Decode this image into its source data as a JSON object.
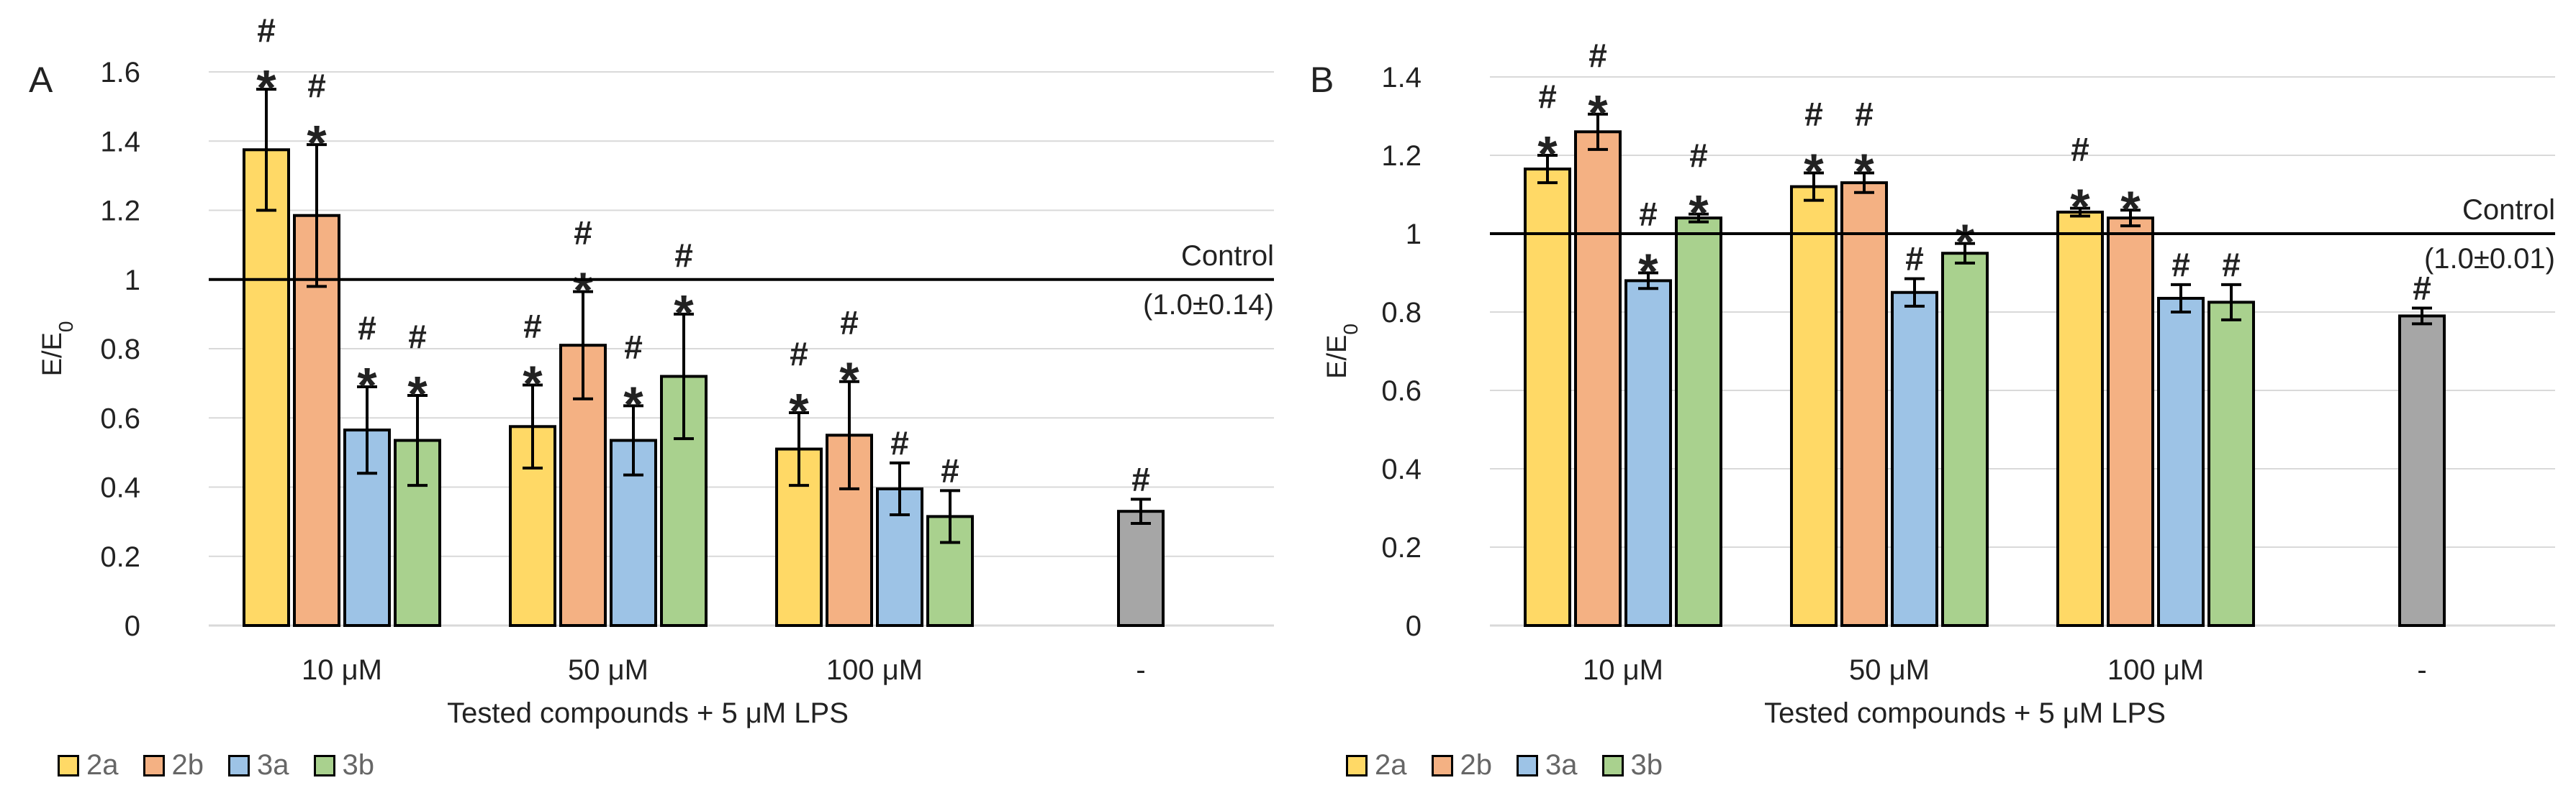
{
  "chart_data": [
    {
      "type": "bar",
      "panel_label": "A",
      "categories": [
        "10 μM",
        "50 μM",
        "100 μM",
        "-"
      ],
      "xlabel": "Tested compounds + 5 μM LPS",
      "ylabel": "E/E0",
      "ylabel_main": "E/E",
      "ylabel_sub": "0",
      "ylim": [
        0,
        1.6
      ],
      "yticks": [
        0,
        0.2,
        0.4,
        0.6,
        0.8,
        1,
        1.2,
        1.4,
        1.6
      ],
      "ytick_labels": [
        "0",
        "0.2",
        "0.4",
        "0.6",
        "0.8",
        "1",
        "1.2",
        "1.4",
        "1.6"
      ],
      "control_value": 1,
      "control_label": "Control",
      "control_sublabel": "(1.0±0.14)",
      "series": [
        {
          "name": "2a",
          "color": "#FFD966",
          "values": [
            1.375,
            0.575,
            0.51,
            null
          ],
          "errors": [
            0.175,
            0.12,
            0.105,
            null
          ],
          "marks": [
            "*#",
            "*#",
            "*#",
            null
          ]
        },
        {
          "name": "2b",
          "color": "#F4B183",
          "values": [
            1.185,
            0.81,
            0.55,
            null
          ],
          "errors": [
            0.205,
            0.155,
            0.155,
            null
          ],
          "marks": [
            "*#",
            "*#",
            "*#",
            null
          ]
        },
        {
          "name": "3a",
          "color": "#9DC3E6",
          "values": [
            0.565,
            0.535,
            0.395,
            null
          ],
          "errors": [
            0.125,
            0.1,
            0.075,
            null
          ],
          "marks": [
            "*#",
            "*#",
            "#",
            null
          ]
        },
        {
          "name": "3b",
          "color": "#A9D18E",
          "values": [
            0.535,
            0.72,
            0.315,
            null
          ],
          "errors": [
            0.13,
            0.18,
            0.075,
            null
          ],
          "marks": [
            "*#",
            "*#",
            "#",
            null
          ]
        },
        {
          "name": "LPS",
          "color": "#A6A6A6",
          "values": [
            null,
            null,
            null,
            0.33
          ],
          "errors": [
            null,
            null,
            null,
            0.035
          ],
          "marks": [
            null,
            null,
            null,
            "#"
          ]
        }
      ],
      "legend": [
        "2a",
        "2b",
        "3a",
        "3b"
      ]
    },
    {
      "type": "bar",
      "panel_label": "B",
      "categories": [
        "10 μM",
        "50 μM",
        "100 μM",
        "-"
      ],
      "xlabel": "Tested compounds + 5 μM LPS",
      "ylabel": "E/E0",
      "ylabel_main": "E/E",
      "ylabel_sub": "0",
      "ylim": [
        0,
        1.4
      ],
      "yticks": [
        0,
        0.2,
        0.4,
        0.6,
        0.8,
        1,
        1.2,
        1.4
      ],
      "ytick_labels": [
        "0",
        "0.2",
        "0.4",
        "0.6",
        "0.8",
        "1",
        "1.2",
        "1.4"
      ],
      "control_value": 1,
      "control_label": "Control",
      "control_sublabel": "(1.0±0.01)",
      "series": [
        {
          "name": "2a",
          "color": "#FFD966",
          "values": [
            1.165,
            1.12,
            1.055,
            null
          ],
          "errors": [
            0.035,
            0.035,
            0.01,
            null
          ],
          "marks": [
            "*#",
            "*#",
            "*#",
            null
          ]
        },
        {
          "name": "2b",
          "color": "#F4B183",
          "values": [
            1.26,
            1.13,
            1.04,
            null
          ],
          "errors": [
            0.045,
            0.025,
            0.02,
            null
          ],
          "marks": [
            "*#",
            "*#",
            "*",
            null
          ]
        },
        {
          "name": "3a",
          "color": "#9DC3E6",
          "values": [
            0.88,
            0.85,
            0.835,
            null
          ],
          "errors": [
            0.02,
            0.035,
            0.035,
            null
          ],
          "marks": [
            "*#",
            "#",
            "#",
            null
          ]
        },
        {
          "name": "3b",
          "color": "#A9D18E",
          "values": [
            1.04,
            0.95,
            0.825,
            null
          ],
          "errors": [
            0.01,
            0.025,
            0.045,
            null
          ],
          "marks": [
            "*#",
            "*",
            "#",
            null
          ]
        },
        {
          "name": "LPS",
          "color": "#A6A6A6",
          "values": [
            null,
            null,
            null,
            0.79
          ],
          "errors": [
            null,
            null,
            null,
            0.02
          ],
          "marks": [
            null,
            null,
            null,
            "#"
          ]
        }
      ],
      "legend": [
        "2a",
        "2b",
        "3a",
        "3b"
      ]
    }
  ]
}
